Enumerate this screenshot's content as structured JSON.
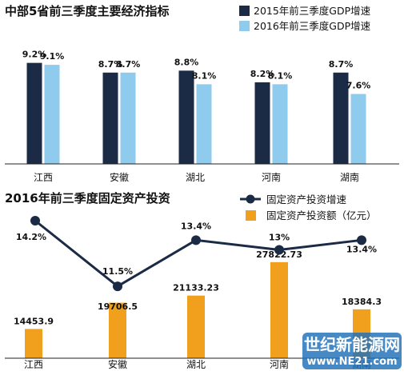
{
  "chart_data": [
    {
      "type": "bar",
      "title": "中部5省前三季度主要经济指标",
      "categories": [
        "江西",
        "安徽",
        "湖北",
        "河南",
        "湖南"
      ],
      "series": [
        {
          "name": "2015年前三季度GDP增速",
          "values": [
            9.2,
            8.7,
            8.8,
            8.2,
            8.7
          ],
          "labels": [
            "9.2%",
            "8.7%",
            "8.8%",
            "8.2%",
            "8.7%"
          ],
          "color": "#1b2a45"
        },
        {
          "name": "2016年前三季度GDP增速",
          "values": [
            9.1,
            8.7,
            8.1,
            8.1,
            7.6
          ],
          "labels": [
            "9.1%",
            "8.7%",
            "8.1%",
            "8.1%",
            "7.6%"
          ],
          "color": "#8fcbed"
        }
      ],
      "ylim": [
        0,
        10
      ],
      "legend": "top-right"
    },
    {
      "type": "bar+line",
      "title": "2016年前三季度固定资产投资",
      "categories": [
        "江西",
        "安徽",
        "湖北",
        "河南",
        "湖南"
      ],
      "series": [
        {
          "name": "固定资产投资增速",
          "kind": "line",
          "values": [
            14.2,
            11.5,
            13.4,
            13,
            13.4
          ],
          "labels": [
            "14.2%",
            "11.5%",
            "13.4%",
            "13%",
            "13.4%"
          ],
          "color": "#1b2a45"
        },
        {
          "name": "固定资产投资额（亿元）",
          "kind": "bar",
          "values": [
            14453.9,
            19706.5,
            21133.23,
            27822.73,
            18384.3
          ],
          "labels": [
            "14453.9",
            "19706.5",
            "21133.23",
            "27822.73",
            "18384.3"
          ],
          "color": "#f0a01c"
        }
      ],
      "legend": "top-right"
    }
  ],
  "watermark": {
    "line1": "世纪新能源网",
    "line2": "www.NE21.com"
  }
}
